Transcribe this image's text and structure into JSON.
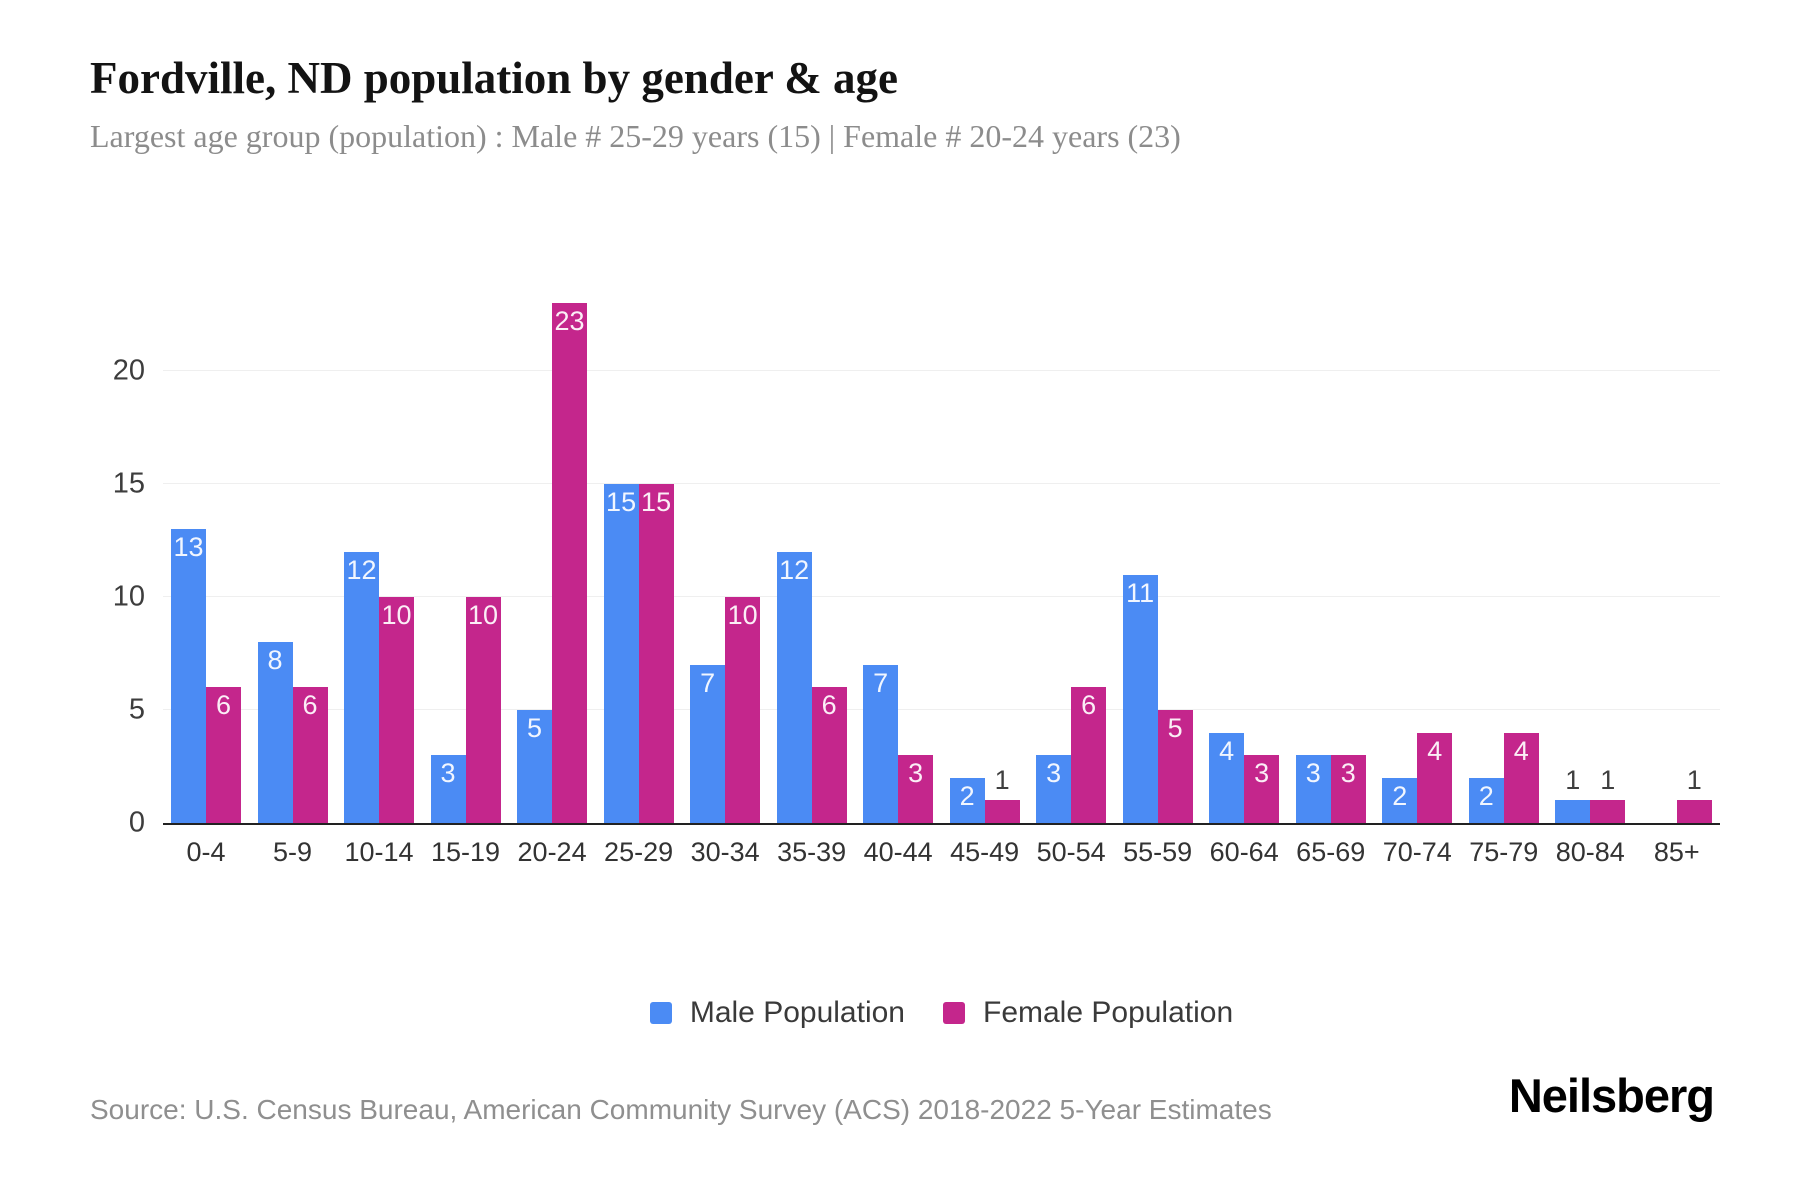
{
  "header": {
    "title": "Fordville, ND population by gender & age",
    "subtitle": "Largest age group (population) : Male # 25-29 years (15) | Female # 20-24 years (23)"
  },
  "chart_data": {
    "type": "bar",
    "title": "Fordville, ND population by gender & age",
    "categories": [
      "0-4",
      "5-9",
      "10-14",
      "15-19",
      "20-24",
      "25-29",
      "30-34",
      "35-39",
      "40-44",
      "45-49",
      "50-54",
      "55-59",
      "60-64",
      "65-69",
      "70-74",
      "75-79",
      "80-84",
      "85+"
    ],
    "series": [
      {
        "name": "Male Population",
        "color": "#4B8BF4",
        "values": [
          13,
          8,
          12,
          3,
          5,
          15,
          7,
          12,
          7,
          2,
          3,
          11,
          4,
          3,
          2,
          2,
          1,
          0
        ]
      },
      {
        "name": "Female Population",
        "color": "#C4268C",
        "values": [
          6,
          6,
          10,
          10,
          23,
          15,
          10,
          6,
          3,
          1,
          6,
          5,
          3,
          3,
          4,
          4,
          1,
          1
        ]
      }
    ],
    "xlabel": "",
    "ylabel": "",
    "yticks": [
      0,
      5,
      10,
      15,
      20
    ],
    "ylim": [
      0,
      23.15
    ],
    "grid": "horizontal",
    "gridline_color": "#efefef",
    "axis_color": "#222222",
    "legend_position": "bottom",
    "label_rule": "values >= 2 labeled inside bar in white, value 1 labeled above bar in dark gray, value 0 unlabeled"
  },
  "footer": {
    "source": "Source: U.S. Census Bureau, American Community Survey (ACS) 2018-2022 5-Year Estimates",
    "brand": "Neilsberg"
  }
}
